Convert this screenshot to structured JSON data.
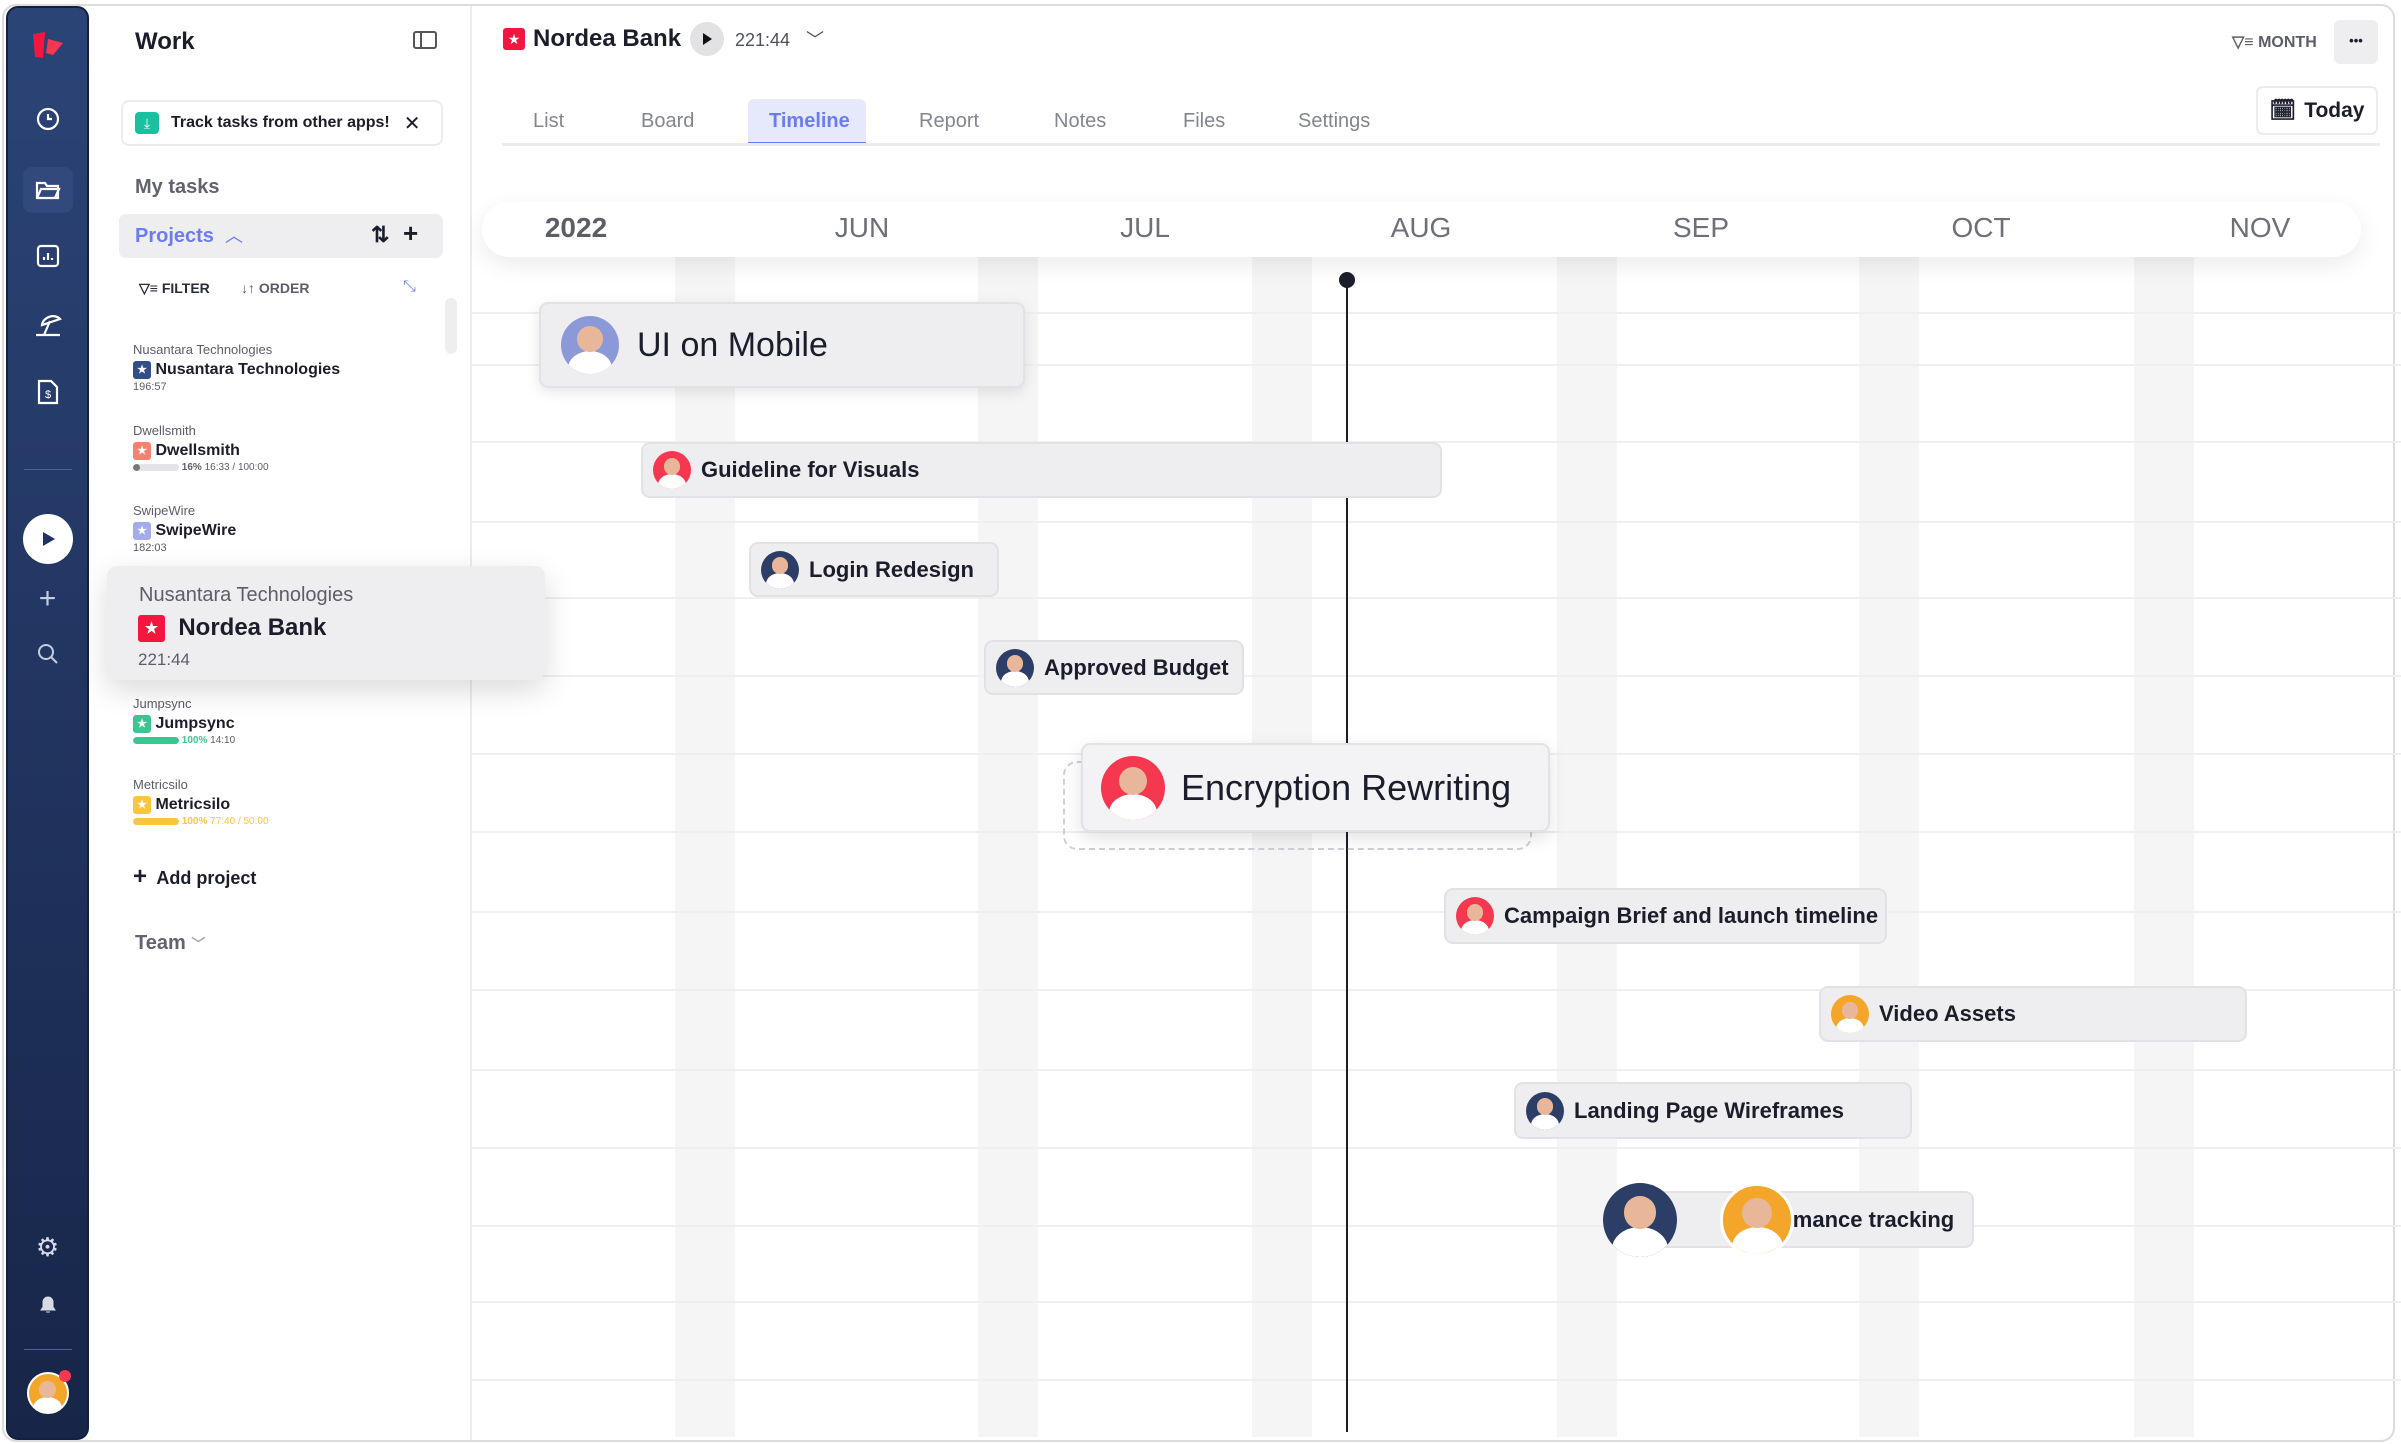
{
  "rail": {
    "icons": [
      "logo",
      "clock-icon",
      "folder-icon",
      "chart-icon",
      "umbrella-icon",
      "invoice-icon",
      "play-icon",
      "plus-icon",
      "search-icon",
      "gear-icon",
      "bell-icon",
      "avatar"
    ]
  },
  "sidebar": {
    "title": "Work",
    "banner": "Track tasks from other apps!",
    "my_tasks": "My tasks",
    "projects": "Projects",
    "filter": "FILTER",
    "order": "ORDER",
    "items": [
      {
        "client": "Nusantara Technologies",
        "name": "Nusantara Technologies",
        "time": "196:57",
        "color": "#2f4f86"
      },
      {
        "client": "Dwellsmith",
        "name": "Dwellsmith",
        "progress_pct": "16%",
        "time": "16:33 / 100:00",
        "progress": 0.16,
        "color": "#f7806f"
      },
      {
        "client": "SwipeWire",
        "name": "SwipeWire",
        "time": "182:03",
        "color": "#a3abea"
      },
      {
        "client": "Nusantara Technologies",
        "name": "Nordea Bank",
        "time": "221:44",
        "color": "#f5163f"
      },
      {
        "client": "Jumpsync",
        "name": "Jumpsync",
        "progress_pct": "100%",
        "time": "14:10",
        "progress": 1.0,
        "color": "#3cc591"
      },
      {
        "client": "Metricsilo",
        "name": "Metricsilo",
        "progress_pct": "100%",
        "time": "77:40 / 50:00",
        "progress": 1.0,
        "color": "#fbc53f"
      }
    ],
    "add_project": "Add project",
    "team": "Team"
  },
  "header": {
    "project": "Nordea Bank",
    "timer": "221:44",
    "month": "MONTH",
    "today": "Today",
    "more": "•••"
  },
  "tabs": [
    "List",
    "Board",
    "Timeline",
    "Report",
    "Notes",
    "Files",
    "Settings"
  ],
  "active_tab": "Timeline",
  "timeline": {
    "year": "2022",
    "months": [
      "JUN",
      "JUL",
      "AUG",
      "SEP",
      "OCT",
      "NOV"
    ],
    "tasks": [
      "UI on Mobile",
      "Guideline for Visuals",
      "Login Redesign",
      "Approved Budget",
      "Encryption Rewriting",
      "Campaign Brief and launch timeline",
      "Video Assets",
      "Landing Page Wireframes",
      "Performance tracking"
    ]
  },
  "colors": {
    "accent": "#6b7cf0",
    "rail": "#1f3261",
    "brand_red": "#f5163f"
  }
}
